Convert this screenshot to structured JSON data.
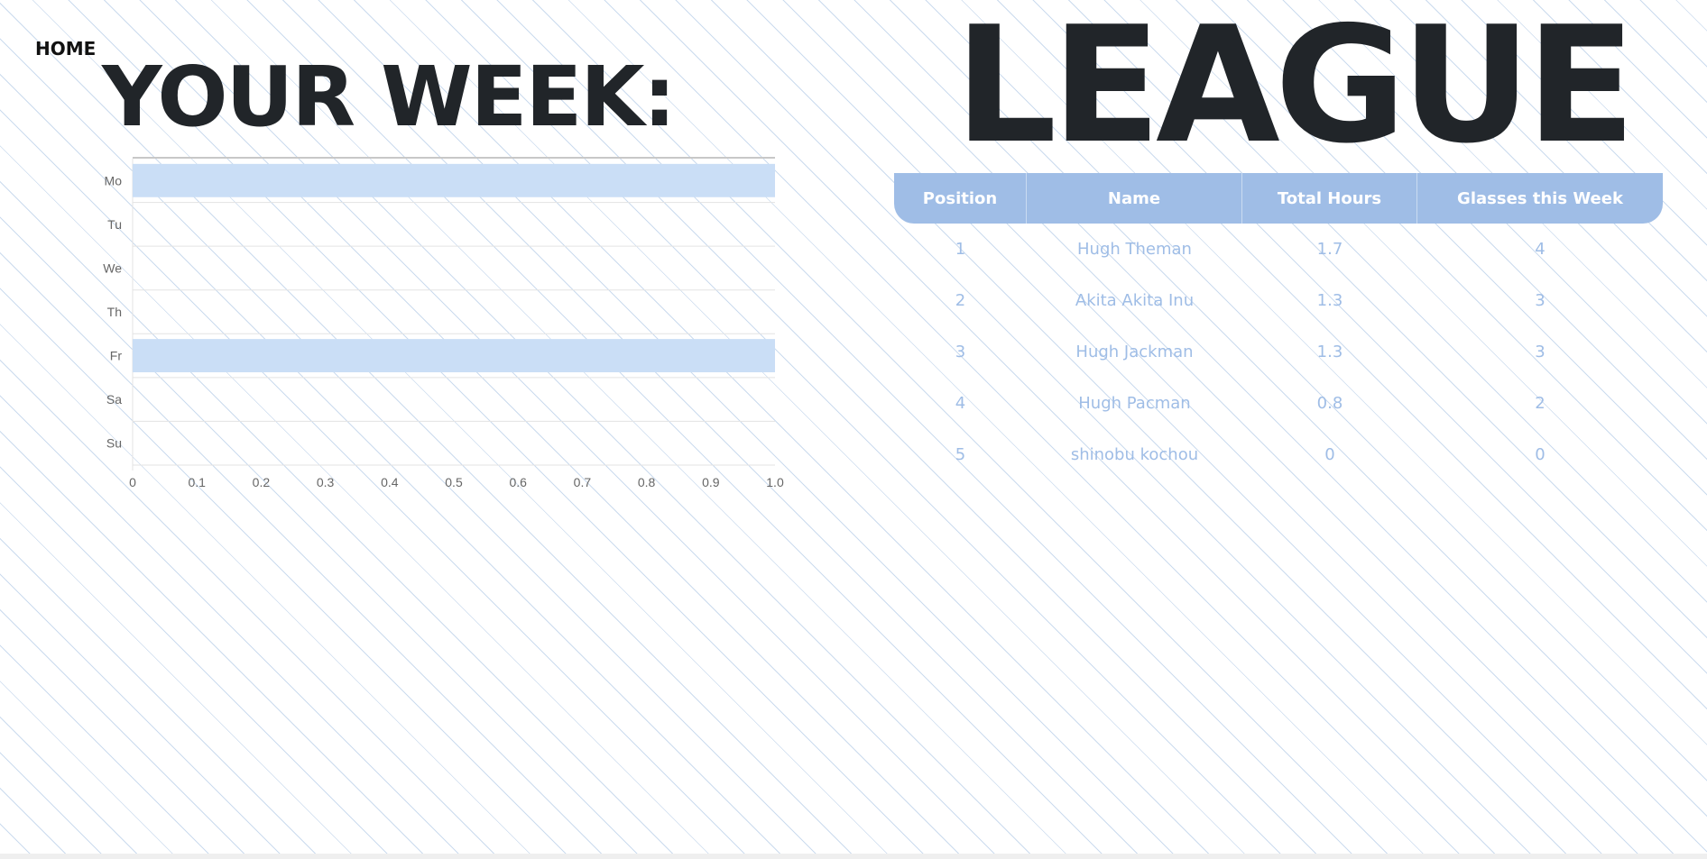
{
  "nav": {
    "home_label": "HOME"
  },
  "week": {
    "title": "YOUR WEEK:"
  },
  "league": {
    "title": "LEAGUE",
    "columns": [
      "Position",
      "Name",
      "Total Hours",
      "Glasses this Week"
    ],
    "rows": [
      {
        "position": "1",
        "name": "Hugh Theman",
        "total_hours": "1.7",
        "glasses": "4"
      },
      {
        "position": "2",
        "name": "Akita Akita Inu",
        "total_hours": "1.3",
        "glasses": "3"
      },
      {
        "position": "3",
        "name": "Hugh Jackman",
        "total_hours": "1.3",
        "glasses": "3"
      },
      {
        "position": "4",
        "name": "Hugh Pacman",
        "total_hours": "0.8",
        "glasses": "2"
      },
      {
        "position": "5",
        "name": "shinobu kochou",
        "total_hours": "0",
        "glasses": "0"
      }
    ]
  },
  "colors": {
    "accent": "#9fbde6",
    "bar_fill": "#cadef6",
    "title_text": "#212529",
    "table_text": "#9fbde6"
  },
  "chart_data": {
    "type": "bar",
    "orientation": "horizontal",
    "categories": [
      "Mo",
      "Tu",
      "We",
      "Th",
      "Fr",
      "Sa",
      "Su"
    ],
    "values": [
      1,
      0,
      0,
      0,
      1,
      0,
      0
    ],
    "xlim": [
      0,
      1.0
    ],
    "xticks": [
      "0",
      "0.1",
      "0.2",
      "0.3",
      "0.4",
      "0.5",
      "0.6",
      "0.7",
      "0.8",
      "0.9",
      "1.0"
    ],
    "grid": true,
    "legend": "none"
  }
}
